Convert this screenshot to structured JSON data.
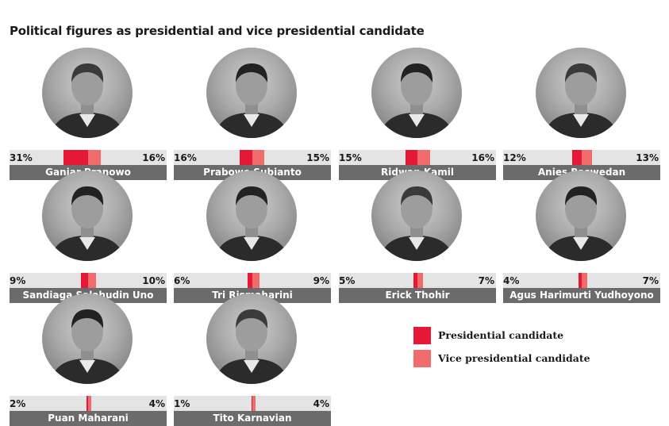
{
  "title": "Political figures as presidential and vice presidential candidate",
  "colors": {
    "presidential": "#e51937",
    "vice": "#f26b6b",
    "track": "#e4e4e4",
    "name_bar": "#6b6b6b"
  },
  "legend": [
    {
      "label": "Presidential candidate",
      "key": "presidential"
    },
    {
      "label": "Vice presidential candidate",
      "key": "vice"
    }
  ],
  "chart_data": {
    "type": "bar",
    "title": "Political figures as presidential and vice presidential candidate",
    "unit": "%",
    "categories": [
      "Ganjar Pranowo",
      "Prabowo Subianto",
      "Ridwan Kamil",
      "Anies Baswedan",
      "Sandiaga Salahudin Uno",
      "Tri Rismaharini",
      "Erick Thohir",
      "Agus Harimurti Yudhoyono",
      "Puan Maharani",
      "Tito Karnavian"
    ],
    "series": [
      {
        "name": "Presidential candidate",
        "values": [
          31,
          16,
          15,
          12,
          9,
          6,
          5,
          4,
          2,
          1
        ]
      },
      {
        "name": "Vice presidential candidate",
        "values": [
          16,
          15,
          16,
          13,
          10,
          9,
          7,
          7,
          4,
          4
        ]
      }
    ],
    "labels": {
      "presidential": [
        "31%",
        "16%",
        "15%",
        "12%",
        "9%",
        "6%",
        "5%",
        "4%",
        "2%",
        "1%"
      ],
      "vice": [
        "16%",
        "15%",
        "16%",
        "13%",
        "10%",
        "9%",
        "7%",
        "7%",
        "4%",
        "4%"
      ]
    },
    "legend_position": "right-bottom"
  }
}
